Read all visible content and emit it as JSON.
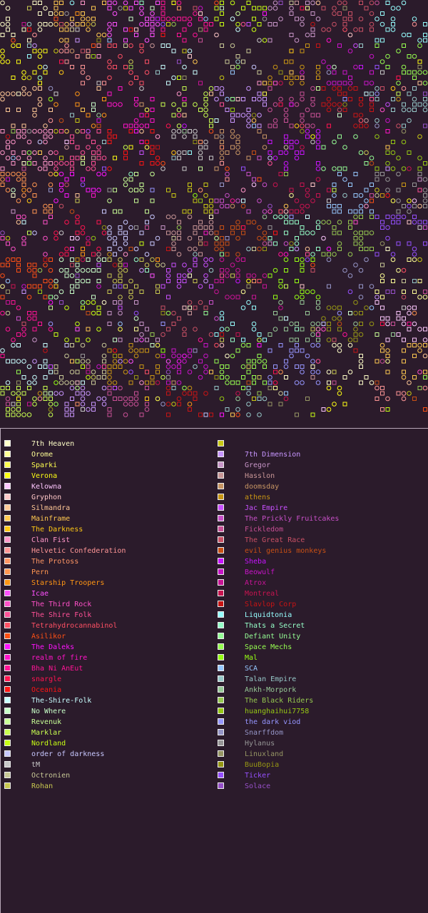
{
  "legend": {
    "left_column": [
      {
        "name": "7th Heaven",
        "color": "#ffffc8"
      },
      {
        "name": "Orome",
        "color": "#ffff96"
      },
      {
        "name": "Sparki",
        "color": "#ffff50"
      },
      {
        "name": "Verona",
        "color": "#ffff14"
      },
      {
        "name": "Kelowna",
        "color": "#ffc8ff"
      },
      {
        "name": "Gryphon",
        "color": "#ffc8c8"
      },
      {
        "name": "Silmandra",
        "color": "#ffc896"
      },
      {
        "name": "Mainframe",
        "color": "#ffc850"
      },
      {
        "name": "The Darkness",
        "color": "#ffc814"
      },
      {
        "name": "Clan Fist",
        "color": "#ff96c8"
      },
      {
        "name": "Helvetic Confederation",
        "color": "#ff9696"
      },
      {
        "name": "The Protoss",
        "color": "#ff9664"
      },
      {
        "name": "Pern",
        "color": "#ff9650"
      },
      {
        "name": "Starship Troopers",
        "color": "#ff9614"
      },
      {
        "name": "Icae",
        "color": "#ff50ff"
      },
      {
        "name": "The Third Rock",
        "color": "#ff50c8"
      },
      {
        "name": "The Shire Folk",
        "color": "#ff5096"
      },
      {
        "name": "Tetrahydrocannabinol",
        "color": "#ff5064"
      },
      {
        "name": "Asilikor",
        "color": "#ff5014"
      },
      {
        "name": "The Daleks",
        "color": "#ff14ff"
      },
      {
        "name": "realm of fire",
        "color": "#ff14c8"
      },
      {
        "name": "Bha Ni AnEut",
        "color": "#ff1496"
      },
      {
        "name": "snargle",
        "color": "#ff1450"
      },
      {
        "name": "Oceania",
        "color": "#ff1414"
      },
      {
        "name": "The-Shire-Folk",
        "color": "#c8ffff"
      },
      {
        "name": "No Where",
        "color": "#c8ffc8"
      },
      {
        "name": "Revenuk",
        "color": "#c8ff96"
      },
      {
        "name": "Marklar",
        "color": "#c8ff50"
      },
      {
        "name": "Nordland",
        "color": "#c8ff14"
      },
      {
        "name": "order of darkness",
        "color": "#c8c8ff"
      },
      {
        "name": "tM",
        "color": "#c8c8c8"
      },
      {
        "name": "Octronien",
        "color": "#c8c896"
      },
      {
        "name": "Rohan",
        "color": "#c8c850"
      }
    ],
    "right_column": [
      {
        "name": "",
        "color": "#c8c814"
      },
      {
        "name": "7th Dimension",
        "color": "#c896ff"
      },
      {
        "name": "Gregor",
        "color": "#c896c8"
      },
      {
        "name": "Hasslon",
        "color": "#c89696"
      },
      {
        "name": "doomsday",
        "color": "#c89664"
      },
      {
        "name": "athens",
        "color": "#c89614"
      },
      {
        "name": "Jac Empire",
        "color": "#c850ff"
      },
      {
        "name": "The Prickly Fruitcakes",
        "color": "#c850c8"
      },
      {
        "name": "Fickledom",
        "color": "#c85096"
      },
      {
        "name": "The Great Race",
        "color": "#c85064"
      },
      {
        "name": "evil genius monkeys",
        "color": "#c85014"
      },
      {
        "name": "Sheba",
        "color": "#c814ff"
      },
      {
        "name": "Beowulf",
        "color": "#c814c8"
      },
      {
        "name": "Atrox",
        "color": "#c81496"
      },
      {
        "name": "Montreal",
        "color": "#c81450"
      },
      {
        "name": "Slavlop Corp",
        "color": "#c81414"
      },
      {
        "name": "Liquidtonia",
        "color": "#96ffff"
      },
      {
        "name": "Thats a Secret",
        "color": "#96ffc8"
      },
      {
        "name": "Defiant Unity",
        "color": "#96ff96"
      },
      {
        "name": "Space Mechs",
        "color": "#96ff50"
      },
      {
        "name": "Mal",
        "color": "#96ff14"
      },
      {
        "name": "SCA",
        "color": "#96c8ff"
      },
      {
        "name": "Talan Empire",
        "color": "#96c8c8"
      },
      {
        "name": "Ankh-Morpork",
        "color": "#96c896"
      },
      {
        "name": "The Black Riders",
        "color": "#96c850"
      },
      {
        "name": "huanghaihui7758",
        "color": "#96c814"
      },
      {
        "name": "the dark viod",
        "color": "#9696ff"
      },
      {
        "name": "Snarffdom",
        "color": "#9696c8"
      },
      {
        "name": "Hylanus",
        "color": "#969696"
      },
      {
        "name": "Linuxland",
        "color": "#969664"
      },
      {
        "name": "BuuBopia",
        "color": "#969614"
      },
      {
        "name": "Ticker",
        "color": "#9650ff"
      },
      {
        "name": "Solace",
        "color": "#9650c8"
      }
    ]
  },
  "map": {
    "background": "#2b1b2b",
    "icon_types": [
      "square-icon",
      "circle-icon"
    ]
  }
}
